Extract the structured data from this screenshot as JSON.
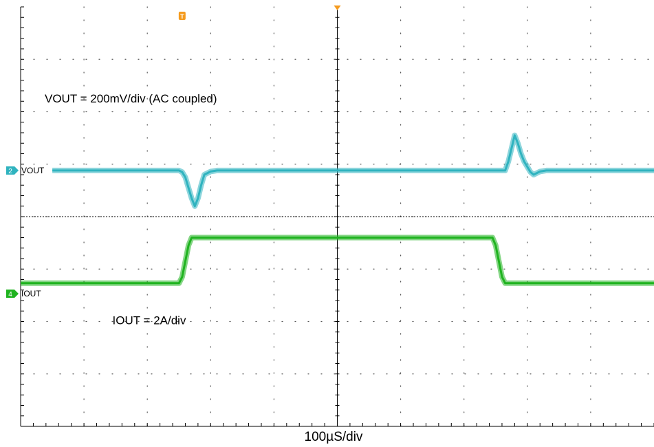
{
  "chart_data": {
    "type": "line",
    "timebase_label": "100µS/div",
    "x_unit": "div",
    "y_unit": "div",
    "xlim": [
      0,
      10
    ],
    "ylim": [
      -4,
      4
    ],
    "grid": true,
    "trigger_marker": "T",
    "series": [
      {
        "name": "VOUT",
        "channel": "2",
        "color": "#2fb3bf",
        "annotation": "VOUT = 200mV/div (AC coupled)",
        "x": [
          0.5,
          2.5,
          2.55,
          2.6,
          2.65,
          2.7,
          2.75,
          2.8,
          2.85,
          2.9,
          3.0,
          3.1,
          3.2,
          7.65,
          7.7,
          7.75,
          7.8,
          7.85,
          7.9,
          7.95,
          8.0,
          8.05,
          8.1,
          8.2,
          8.3,
          10
        ],
        "y": [
          0.88,
          0.88,
          0.85,
          0.75,
          0.55,
          0.35,
          0.2,
          0.35,
          0.6,
          0.8,
          0.86,
          0.88,
          0.88,
          0.88,
          1.05,
          1.3,
          1.55,
          1.4,
          1.2,
          1.05,
          0.95,
          0.85,
          0.8,
          0.86,
          0.88,
          0.88
        ]
      },
      {
        "name": "IOUT",
        "channel": "4",
        "color": "#1fb31f",
        "annotation": "IOUT = 2A/div",
        "x": [
          0.0,
          2.5,
          2.55,
          2.6,
          2.65,
          2.7,
          2.75,
          7.45,
          7.5,
          7.55,
          7.6,
          7.65,
          7.7,
          10
        ],
        "y": [
          -1.27,
          -1.27,
          -1.15,
          -0.85,
          -0.55,
          -0.4,
          -0.4,
          -0.4,
          -0.55,
          -0.85,
          -1.15,
          -1.27,
          -1.27,
          -1.27
        ]
      }
    ]
  }
}
